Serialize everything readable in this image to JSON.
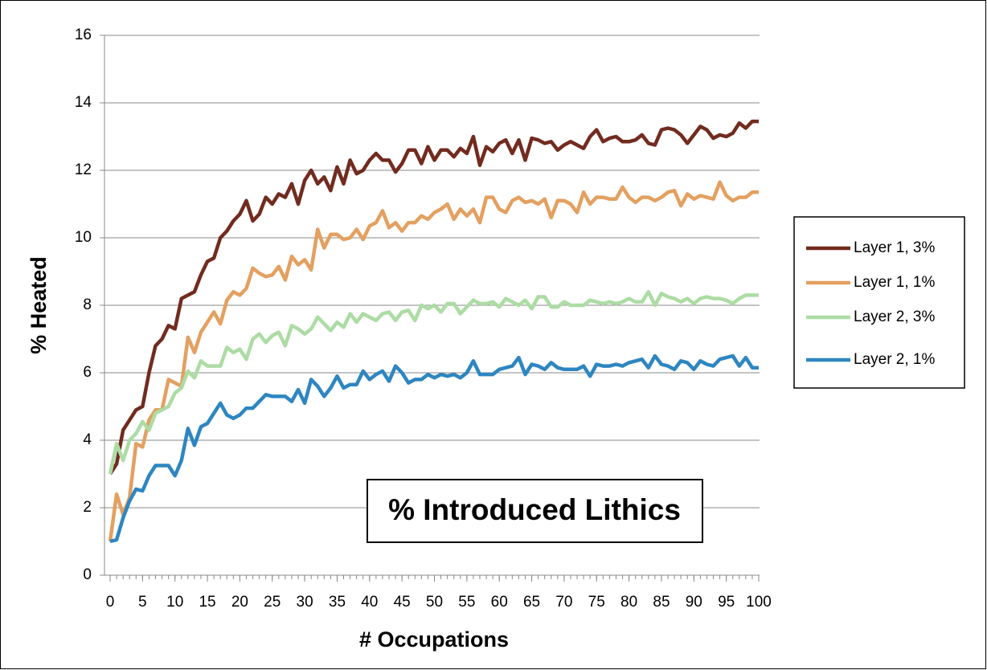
{
  "chart_data": {
    "type": "line",
    "annotation": "% Introduced Lithics",
    "x_label": "# Occupations",
    "y_label": "% Heated",
    "x": [
      0,
      1,
      2,
      3,
      4,
      5,
      6,
      7,
      8,
      9,
      10,
      11,
      12,
      13,
      14,
      15,
      16,
      17,
      18,
      19,
      20,
      21,
      22,
      23,
      24,
      25,
      26,
      27,
      28,
      29,
      30,
      31,
      32,
      33,
      34,
      35,
      36,
      37,
      38,
      39,
      40,
      41,
      42,
      43,
      44,
      45,
      46,
      47,
      48,
      49,
      50,
      51,
      52,
      53,
      54,
      55,
      56,
      57,
      58,
      59,
      60,
      61,
      62,
      63,
      64,
      65,
      66,
      67,
      68,
      69,
      70,
      71,
      72,
      73,
      74,
      75,
      76,
      77,
      78,
      79,
      80,
      81,
      82,
      83,
      84,
      85,
      86,
      87,
      88,
      89,
      90,
      91,
      92,
      93,
      94,
      95,
      96,
      97,
      98,
      99,
      100
    ],
    "xlim": [
      0,
      100
    ],
    "xticks": [
      0,
      5,
      10,
      15,
      20,
      25,
      30,
      35,
      40,
      45,
      50,
      55,
      60,
      65,
      70,
      75,
      80,
      85,
      90,
      95,
      100
    ],
    "ylim": [
      0,
      16
    ],
    "yticks": [
      0,
      2,
      4,
      6,
      8,
      10,
      12,
      14,
      16
    ],
    "grid": true,
    "legend": "right",
    "series": [
      {
        "name": "Layer 1, 3%",
        "color": "#722b1f",
        "values": [
          3.0,
          3.3,
          4.3,
          4.6,
          4.9,
          5.0,
          6.0,
          6.8,
          7.0,
          7.4,
          7.3,
          8.2,
          8.3,
          8.4,
          8.9,
          9.3,
          9.4,
          10.0,
          10.2,
          10.5,
          10.7,
          11.1,
          10.5,
          10.7,
          11.2,
          11.0,
          11.3,
          11.2,
          11.6,
          11.0,
          11.7,
          12.0,
          11.6,
          11.8,
          11.4,
          12.1,
          11.6,
          12.3,
          11.9,
          12.0,
          12.3,
          12.5,
          12.3,
          12.3,
          11.95,
          12.2,
          12.6,
          12.6,
          12.2,
          12.7,
          12.3,
          12.6,
          12.6,
          12.4,
          12.65,
          12.5,
          13.0,
          12.15,
          12.7,
          12.55,
          12.8,
          12.9,
          12.5,
          12.9,
          12.3,
          12.95,
          12.9,
          12.8,
          12.85,
          12.6,
          12.75,
          12.85,
          12.75,
          12.65,
          13.0,
          13.2,
          12.85,
          12.95,
          13.0,
          12.85,
          12.85,
          12.9,
          13.05,
          12.8,
          12.75,
          13.2,
          13.25,
          13.2,
          13.05,
          12.8,
          13.05,
          13.3,
          13.2,
          12.95,
          13.05,
          13.0,
          13.1,
          13.4,
          13.25,
          13.45,
          13.45
        ]
      },
      {
        "name": "Layer 1, 1%",
        "color": "#e3a060",
        "values": [
          1.0,
          2.4,
          1.8,
          2.3,
          3.9,
          3.8,
          4.6,
          4.9,
          4.9,
          5.8,
          5.7,
          5.6,
          7.05,
          6.6,
          7.2,
          7.5,
          7.8,
          7.45,
          8.15,
          8.4,
          8.3,
          8.5,
          9.1,
          8.95,
          8.85,
          8.9,
          9.15,
          8.75,
          9.45,
          9.2,
          9.35,
          9.05,
          10.25,
          9.7,
          10.1,
          10.1,
          9.95,
          10.0,
          10.25,
          9.95,
          10.35,
          10.45,
          10.8,
          10.3,
          10.45,
          10.2,
          10.45,
          10.45,
          10.65,
          10.55,
          10.75,
          10.85,
          11.0,
          10.55,
          10.85,
          10.65,
          10.85,
          10.45,
          11.2,
          11.2,
          10.85,
          10.75,
          11.1,
          11.2,
          11.05,
          11.1,
          11.0,
          11.15,
          10.6,
          11.1,
          11.1,
          11.0,
          10.75,
          11.35,
          11.0,
          11.2,
          11.2,
          11.15,
          11.15,
          11.5,
          11.2,
          11.05,
          11.2,
          11.2,
          11.1,
          11.2,
          11.35,
          11.4,
          10.95,
          11.3,
          11.15,
          11.25,
          11.2,
          11.15,
          11.65,
          11.25,
          11.1,
          11.2,
          11.2,
          11.35,
          11.35
        ]
      },
      {
        "name": "Layer 2, 3%",
        "color": "#acdca4",
        "values": [
          3.0,
          3.9,
          3.4,
          4.0,
          4.2,
          4.55,
          4.3,
          4.8,
          4.9,
          5.0,
          5.4,
          5.55,
          6.05,
          5.85,
          6.35,
          6.2,
          6.2,
          6.2,
          6.75,
          6.6,
          6.7,
          6.4,
          7.0,
          7.15,
          6.9,
          7.1,
          7.2,
          6.8,
          7.4,
          7.3,
          7.15,
          7.3,
          7.65,
          7.45,
          7.25,
          7.5,
          7.35,
          7.75,
          7.5,
          7.75,
          7.65,
          7.55,
          7.75,
          7.8,
          7.55,
          7.8,
          7.85,
          7.55,
          8.0,
          7.9,
          8.0,
          7.8,
          8.05,
          8.05,
          7.75,
          7.95,
          8.15,
          8.05,
          8.05,
          8.1,
          7.95,
          8.2,
          8.1,
          8.0,
          8.15,
          7.9,
          8.25,
          8.25,
          7.95,
          7.95,
          8.1,
          8.0,
          8.0,
          8.0,
          8.15,
          8.1,
          8.05,
          8.1,
          8.05,
          8.1,
          8.2,
          8.1,
          8.1,
          8.4,
          8.0,
          8.35,
          8.25,
          8.2,
          8.1,
          8.2,
          8.05,
          8.2,
          8.25,
          8.2,
          8.2,
          8.15,
          8.05,
          8.2,
          8.3,
          8.3,
          8.3
        ]
      },
      {
        "name": "Layer 2, 1%",
        "color": "#2e86c1",
        "values": [
          1.0,
          1.05,
          1.7,
          2.2,
          2.55,
          2.5,
          2.95,
          3.25,
          3.25,
          3.25,
          2.95,
          3.4,
          4.35,
          3.85,
          4.4,
          4.5,
          4.8,
          5.1,
          4.75,
          4.65,
          4.75,
          4.95,
          4.95,
          5.15,
          5.35,
          5.3,
          5.3,
          5.3,
          5.15,
          5.5,
          5.1,
          5.8,
          5.6,
          5.3,
          5.55,
          5.9,
          5.55,
          5.65,
          5.65,
          6.05,
          5.8,
          5.95,
          6.05,
          5.75,
          6.2,
          6.0,
          5.7,
          5.8,
          5.8,
          5.95,
          5.85,
          5.95,
          5.9,
          5.95,
          5.85,
          6.0,
          6.35,
          5.95,
          5.95,
          5.95,
          6.1,
          6.15,
          6.2,
          6.45,
          5.95,
          6.25,
          6.2,
          6.1,
          6.3,
          6.15,
          6.1,
          6.1,
          6.1,
          6.2,
          5.9,
          6.25,
          6.2,
          6.2,
          6.25,
          6.2,
          6.3,
          6.35,
          6.4,
          6.15,
          6.5,
          6.25,
          6.2,
          6.1,
          6.35,
          6.3,
          6.1,
          6.35,
          6.25,
          6.2,
          6.4,
          6.45,
          6.5,
          6.2,
          6.45,
          6.15,
          6.15
        ]
      }
    ]
  }
}
